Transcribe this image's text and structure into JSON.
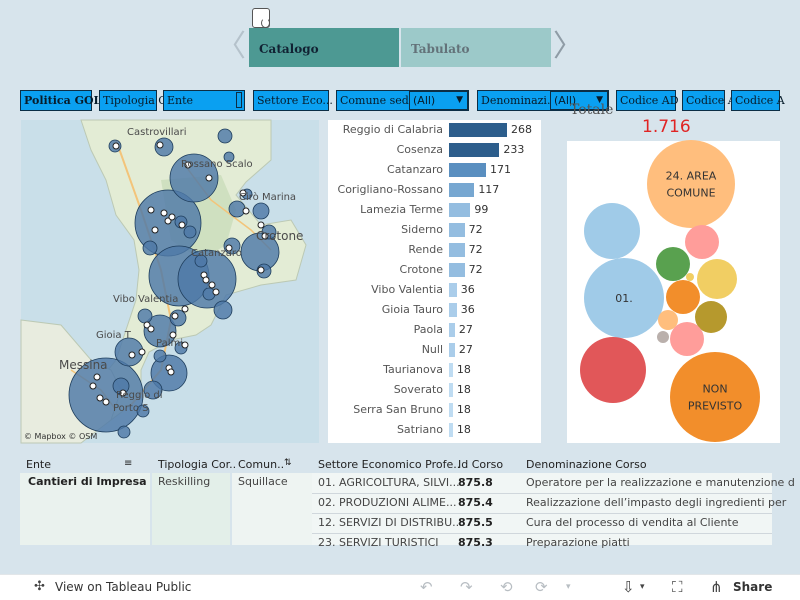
{
  "nav": {
    "prev": "〈",
    "next": "〉",
    "tabs": [
      "Catalogo",
      "Tabulato"
    ]
  },
  "filters": {
    "politica": "Politica GOL",
    "tipologia": "Tipologia C",
    "ente": "Ente",
    "settore": "Settore Eco...",
    "comune": "Comune sede",
    "comune_value": "(All)",
    "denominazione": "Denominazi...",
    "denominazione_value": "(All)",
    "codice1": "Codice AD",
    "codice2": "Codice A",
    "codice3": "Codice A"
  },
  "map": {
    "labels": [
      "Castrovillari",
      "Rossano Scalo",
      "Cirò Marina",
      "Crotone",
      "Catanzaro",
      "Vibo Valentia",
      "Gioia T",
      "Messina",
      "Palmi",
      "Reggio di",
      "Porto S"
    ],
    "credit": "© Mapbox © OSM",
    "bubble_color": "#4e79a7"
  },
  "bar_chart": {
    "color_scale": [
      "#2d5e8c",
      "#3e73a6",
      "#5a8fc0",
      "#77a7d1",
      "#94bde0",
      "#aacdea",
      "#bfdcf2"
    ],
    "chart_data": {
      "type": "bar",
      "categories": [
        "Reggio di Calabria",
        "Cosenza",
        "Catanzaro",
        "Corigliano-Rossano",
        "Lamezia Terme",
        "Siderno",
        "Rende",
        "Crotone",
        "Vibo Valentia",
        "Gioia Tauro",
        "Paola",
        "Null",
        "Taurianova",
        "Soverato",
        "Serra San Bruno",
        "Satriano"
      ],
      "values": [
        268,
        233,
        171,
        117,
        99,
        72,
        72,
        72,
        36,
        36,
        27,
        27,
        18,
        18,
        18,
        18
      ]
    }
  },
  "bubbles": {
    "title_cut": "Totale",
    "total": "1.716",
    "items": [
      {
        "label": "24. AREA\nCOMUNE",
        "color": "#ffbe7d"
      },
      {
        "label": "",
        "color": "#a0cbe8"
      },
      {
        "label": "",
        "color": "#ff9d9a"
      },
      {
        "label": "",
        "color": "#59a14f"
      },
      {
        "label": "",
        "color": "#f1ce63"
      },
      {
        "label": "",
        "color": "#f1ce63"
      },
      {
        "label": "01.",
        "color": "#a0cbe8"
      },
      {
        "label": "",
        "color": "#f28e2b"
      },
      {
        "label": "",
        "color": "#b6992d"
      },
      {
        "label": "",
        "color": "#ffbe7d"
      },
      {
        "label": "",
        "color": "#bab0ac"
      },
      {
        "label": "",
        "color": "#ff9d9a"
      },
      {
        "label": "",
        "color": "#e15759"
      },
      {
        "label": "NON\nPREVISTO",
        "color": "#f28e2b"
      }
    ]
  },
  "table": {
    "headers": [
      "Ente",
      "Tipologia Cor..",
      "Comun..",
      "Settore Economico Profe..",
      "Id Corso",
      "Denominazione Corso"
    ],
    "ente": "Cantieri di Impresa",
    "tipologia": "Reskilling",
    "comune": "Squillace",
    "rows": [
      {
        "settore": "01. AGRICOLTURA, SILVI...",
        "id": "875.8",
        "denominazione": "Operatore per la realizzazione e manutenzione d"
      },
      {
        "settore": "02. PRODUZIONI ALIME...",
        "id": "875.4",
        "denominazione": "Realizzazione dell’impasto degli ingredienti per"
      },
      {
        "settore": "12. SERVIZI DI DISTRIBU...",
        "id": "875.5",
        "denominazione": "Cura del processo di vendita al Cliente"
      },
      {
        "settore": "23. SERVIZI TURISTICI",
        "id": "875.3",
        "denominazione": "Preparazione piatti"
      }
    ]
  },
  "footer": {
    "view_public": "View on Tableau Public",
    "share": "Share"
  }
}
